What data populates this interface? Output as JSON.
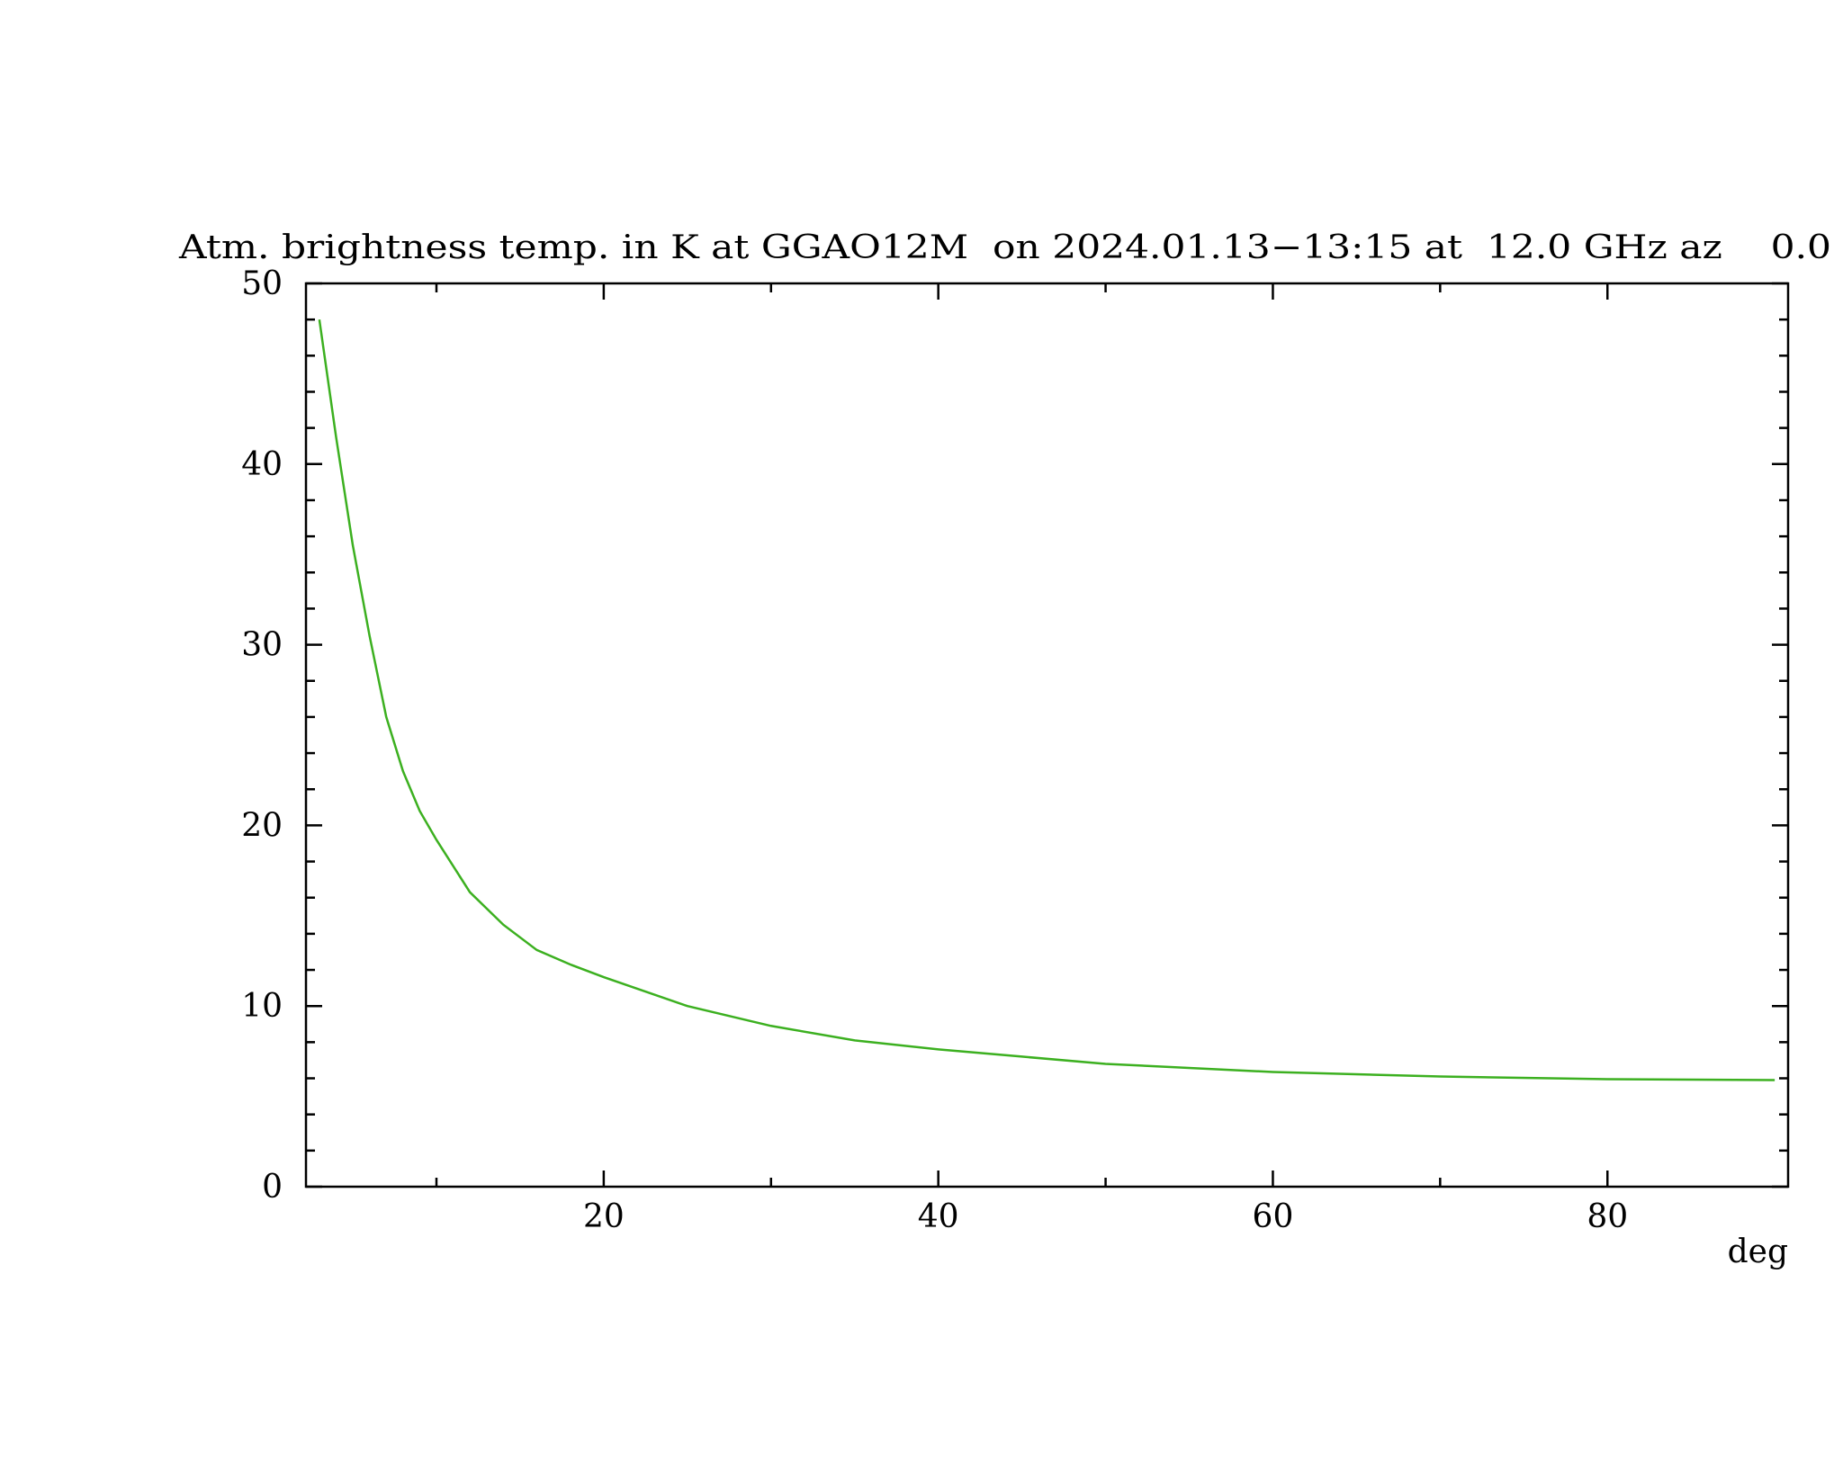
{
  "chart_data": {
    "type": "line",
    "title": "Atm. brightness temp. in K at GGAO12M  on 2024.01.13−13:15 at  12.0 GHz az    0.0",
    "xlabel": "deg",
    "x": [
      3,
      4,
      5,
      6,
      7,
      8,
      9,
      10,
      12,
      14,
      16,
      18,
      20,
      25,
      30,
      35,
      40,
      45,
      50,
      60,
      70,
      80,
      90
    ],
    "series": [
      {
        "color": "#3cb020",
        "values": [
          48,
          41.5,
          35.5,
          30.5,
          26,
          23,
          20.8,
          19.2,
          16.3,
          14.5,
          13.1,
          12.3,
          11.6,
          10.0,
          8.9,
          8.1,
          7.6,
          7.2,
          6.8,
          6.35,
          6.1,
          5.95,
          5.9
        ]
      }
    ],
    "xlim": [
      2.2,
      90.8
    ],
    "ylim": [
      0,
      50
    ],
    "xticks": [
      20,
      40,
      60,
      80
    ],
    "yticks": [
      0,
      10,
      20,
      30,
      40,
      50
    ],
    "xminorticks": [
      10,
      30,
      50,
      70
    ],
    "yminorticks": [
      2,
      4,
      6,
      8,
      12,
      14,
      16,
      18,
      22,
      24,
      26,
      28,
      32,
      34,
      36,
      38,
      42,
      44,
      46,
      48
    ]
  }
}
